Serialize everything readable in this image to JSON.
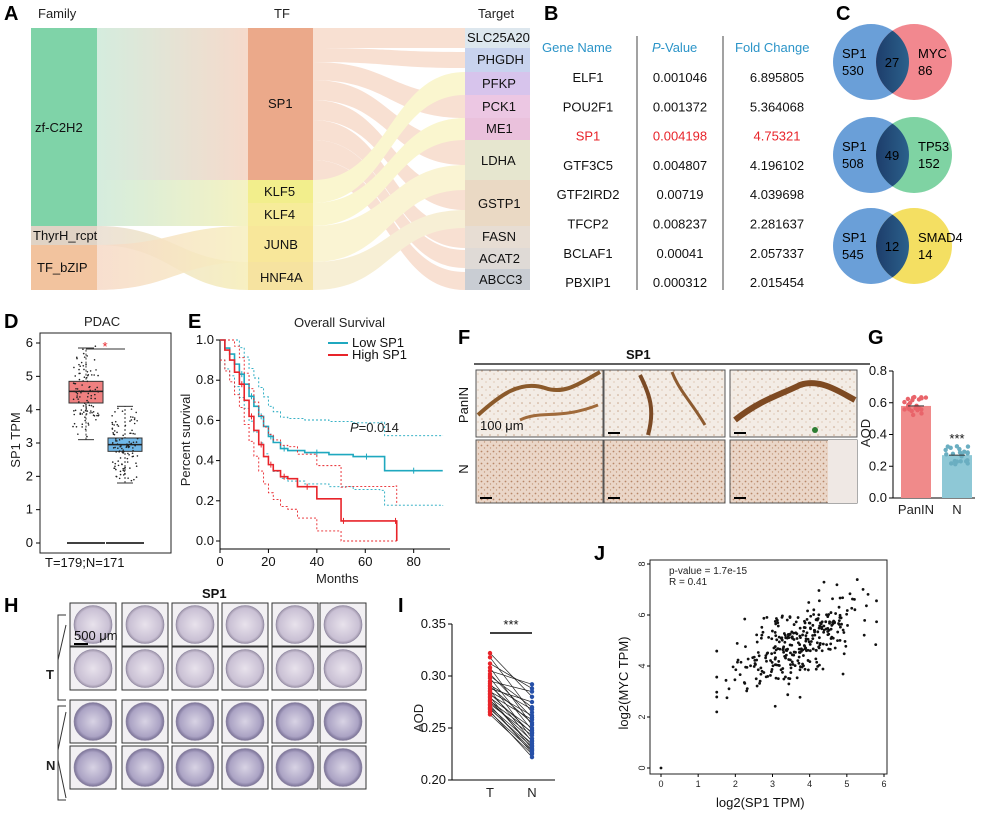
{
  "panels": {
    "A": "A",
    "B": "B",
    "C": "C",
    "D": "D",
    "E": "E",
    "F": "F",
    "G": "G",
    "H": "H",
    "I": "I",
    "J": "J"
  },
  "sankey": {
    "headers": {
      "family": "Family",
      "tf": "TF",
      "target": "Target"
    },
    "families": [
      "zf-C2H2",
      "ThyrH_rcpt",
      "TF_bZIP"
    ],
    "tfs": [
      "SP1",
      "KLF5",
      "KLF4",
      "JUNB",
      "HNF4A"
    ],
    "targets": [
      "SLC25A20",
      "PHGDH",
      "PFKP",
      "PCK1",
      "ME1",
      "LDHA",
      "GSTP1",
      "FASN",
      "ACAT2",
      "ABCC3"
    ]
  },
  "table": {
    "headers": {
      "gene": "Gene Name",
      "p_prefix": "P",
      "p_suffix": "-Value",
      "fc": "Fold Change"
    },
    "rows": [
      {
        "gene": "ELF1",
        "p": "0.001046",
        "fc": "6.895805"
      },
      {
        "gene": "POU2F1",
        "p": "0.001372",
        "fc": "5.364068"
      },
      {
        "gene": "SP1",
        "p": "0.004198",
        "fc": "4.75321"
      },
      {
        "gene": "GTF3C5",
        "p": "0.004807",
        "fc": "4.196102"
      },
      {
        "gene": "GTF2IRD2",
        "p": "0.00719",
        "fc": "4.039698"
      },
      {
        "gene": "TFCP2",
        "p": "0.008237",
        "fc": "2.281637"
      },
      {
        "gene": "BCLAF1",
        "p": "0.00041",
        "fc": "2.057337"
      },
      {
        "gene": "PBXIP1",
        "p": "0.000312",
        "fc": "2.015454"
      }
    ]
  },
  "venns": [
    {
      "left": "SP1",
      "left_n": "530",
      "overlap": "27",
      "right": "MYC",
      "right_n": "86",
      "right_color": "#f2888f"
    },
    {
      "left": "SP1",
      "left_n": "508",
      "overlap": "49",
      "right": "TP53",
      "right_n": "152",
      "right_color": "#7fd3a3"
    },
    {
      "left": "SP1",
      "left_n": "545",
      "overlap": "12",
      "right": "SMAD4",
      "right_n": "14",
      "right_color": "#f4df62"
    }
  ],
  "colors": {
    "blue": "#2b94c8",
    "red": "#e8242a",
    "venn_left": "#6a9fd8"
  },
  "chart_data": [
    {
      "panel": "D",
      "type": "box",
      "title": "PDAC",
      "ylabel": "SP1 TPM",
      "xlabel": "T=179;N=171",
      "ylim": [
        0,
        6
      ],
      "yticks": [
        0,
        1,
        2,
        3,
        4,
        5,
        6
      ],
      "groups": [
        {
          "name": "T",
          "color": "#f08080",
          "q1": 4.2,
          "median": 4.55,
          "q3": 4.85,
          "whisker_low": 3.1,
          "whisker_high": 5.85
        },
        {
          "name": "N",
          "color": "#6fb7e8",
          "q1": 2.75,
          "median": 2.95,
          "q3": 3.15,
          "whisker_low": 1.8,
          "whisker_high": 4.1
        }
      ],
      "significance": "*"
    },
    {
      "panel": "E",
      "type": "line",
      "title": "Overall Survival",
      "xlabel": "Months",
      "ylabel": "Percent survival",
      "xlim": [
        0,
        95
      ],
      "ylim": [
        0,
        1.0
      ],
      "xticks": [
        0,
        20,
        40,
        60,
        80
      ],
      "yticks": [
        0.0,
        0.2,
        0.4,
        0.6,
        0.8,
        1.0
      ],
      "annotation_prefix": "P",
      "annotation_value": "=0.014",
      "series": [
        {
          "name": "Low SP1",
          "color": "#1fa8bf",
          "x": [
            0,
            2,
            4,
            6,
            8,
            10,
            12,
            14,
            16,
            18,
            20,
            22,
            25,
            28,
            35,
            45,
            55,
            66,
            68,
            92
          ],
          "y": [
            1.0,
            0.96,
            0.93,
            0.88,
            0.83,
            0.78,
            0.72,
            0.67,
            0.62,
            0.57,
            0.52,
            0.49,
            0.46,
            0.45,
            0.44,
            0.43,
            0.42,
            0.42,
            0.35,
            0.35
          ]
        },
        {
          "name": "High SP1",
          "color": "#e8242a",
          "x": [
            0,
            2,
            4,
            6,
            8,
            10,
            12,
            14,
            16,
            18,
            20,
            22,
            25,
            28,
            32,
            40,
            50,
            52,
            72,
            73
          ],
          "y": [
            1.0,
            0.95,
            0.9,
            0.84,
            0.78,
            0.7,
            0.62,
            0.55,
            0.48,
            0.42,
            0.38,
            0.35,
            0.32,
            0.31,
            0.27,
            0.21,
            0.1,
            0.1,
            0.1,
            0.0
          ]
        }
      ]
    },
    {
      "panel": "G",
      "type": "bar",
      "ylabel": "AOD",
      "categories": [
        "PanIN",
        "N"
      ],
      "values": [
        0.58,
        0.27
      ],
      "ylim": [
        0,
        0.8
      ],
      "yticks": [
        0.0,
        0.2,
        0.4,
        0.6,
        0.8
      ],
      "colors": [
        "#f08a8a",
        "#8ec8d6"
      ],
      "significance": "***"
    },
    {
      "panel": "I",
      "type": "paired",
      "ylabel": "AOD",
      "categories": [
        "T",
        "N"
      ],
      "ylim": [
        0.2,
        0.35
      ],
      "yticks": [
        0.2,
        0.25,
        0.3,
        0.35
      ],
      "T_values": [
        0.322,
        0.318,
        0.312,
        0.308,
        0.305,
        0.302,
        0.3,
        0.298,
        0.295,
        0.293,
        0.291,
        0.29,
        0.288,
        0.286,
        0.285,
        0.283,
        0.282,
        0.28,
        0.279,
        0.277,
        0.276,
        0.275,
        0.273,
        0.272,
        0.27,
        0.269,
        0.268,
        0.266,
        0.265,
        0.263
      ],
      "N_values": [
        0.292,
        0.288,
        0.285,
        0.28,
        0.275,
        0.27,
        0.268,
        0.265,
        0.262,
        0.26,
        0.258,
        0.255,
        0.253,
        0.25,
        0.248,
        0.246,
        0.245,
        0.243,
        0.24,
        0.238,
        0.237,
        0.235,
        0.233,
        0.232,
        0.23,
        0.229,
        0.228,
        0.226,
        0.225,
        0.222
      ],
      "significance": "***"
    },
    {
      "panel": "J",
      "type": "scatter",
      "xlabel": "log2(SP1 TPM)",
      "ylabel": "log2(MYC TPM)",
      "xlim": [
        0,
        6
      ],
      "ylim": [
        0,
        8
      ],
      "xticks": [
        0,
        1,
        2,
        3,
        4,
        5,
        6
      ],
      "yticks": [
        0,
        2,
        4,
        6,
        8
      ],
      "stat_p": "p-value = 1.7e-15",
      "stat_r": "R = 0.41",
      "n_points": 330,
      "x_range_cloud": [
        1.5,
        5.8
      ],
      "y_range_cloud": [
        2.2,
        8.1
      ],
      "outlier": [
        0,
        0
      ]
    }
  ],
  "panelF": {
    "title": "SP1",
    "row_labels": [
      "PanIN",
      "N"
    ],
    "scale_bar": "100 μm"
  },
  "panelH": {
    "title": "SP1",
    "row_labels": [
      "T",
      "N"
    ],
    "scale_bar": "500 μm"
  }
}
